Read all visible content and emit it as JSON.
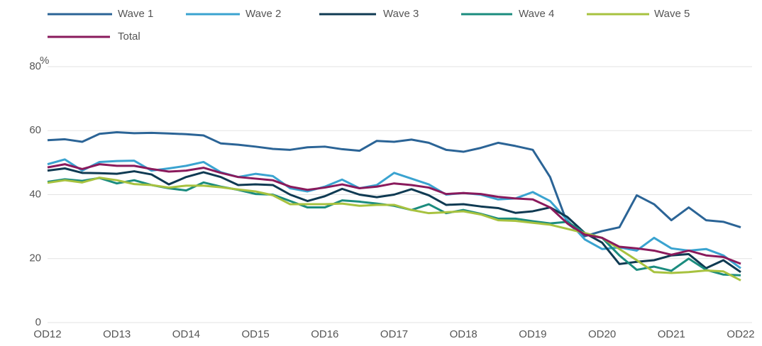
{
  "chart_data": {
    "type": "line",
    "y_label": "%",
    "categories": [
      "OD12",
      null,
      null,
      null,
      "OD13",
      null,
      null,
      null,
      "OD14",
      null,
      null,
      null,
      "OD15",
      null,
      null,
      null,
      "OD16",
      null,
      null,
      null,
      "OD17",
      null,
      null,
      null,
      "OD18",
      null,
      null,
      null,
      "OD19",
      null,
      null,
      null,
      "OD20",
      null,
      null,
      null,
      "OD21",
      null,
      null,
      null,
      "OD22"
    ],
    "series": [
      {
        "name": "Wave 1",
        "color": "#2b6496",
        "values": [
          57,
          57.3,
          56.5,
          59,
          59.5,
          59.2,
          59.3,
          59.1,
          58.9,
          58.5,
          56,
          55.6,
          55,
          54.3,
          54,
          54.8,
          55,
          54.2,
          53.7,
          56.8,
          56.5,
          57.2,
          56.2,
          54,
          53.4,
          54.6,
          56.2,
          55.2,
          54,
          45.5,
          31,
          27,
          28.6,
          29.8,
          39.8,
          37,
          32,
          36,
          32,
          31.5,
          29.8
        ]
      },
      {
        "name": "Wave 2",
        "color": "#3aa3d0",
        "values": [
          49.5,
          51,
          47.5,
          50.2,
          50.5,
          50.6,
          47.5,
          48.2,
          49,
          50.2,
          47,
          45.5,
          46.5,
          45.8,
          42,
          41,
          42.5,
          44.7,
          42,
          43,
          46.8,
          45,
          43.2,
          40,
          40.5,
          40,
          38.5,
          38.8,
          40.8,
          38,
          32,
          26,
          23,
          23.5,
          22.5,
          26.5,
          23.2,
          22.5,
          23,
          21,
          17
        ]
      },
      {
        "name": "Wave 3",
        "color": "#0f3a52",
        "values": [
          47.5,
          48.2,
          46.8,
          46.7,
          46.5,
          47.3,
          46.3,
          43.2,
          45.5,
          47,
          45.5,
          43,
          43.2,
          43,
          40,
          38,
          39.5,
          41.8,
          40,
          39.2,
          40,
          41.7,
          39.8,
          36.8,
          37,
          36.3,
          35.8,
          34.3,
          34.8,
          36,
          33,
          28,
          25,
          18.3,
          19,
          19.5,
          21,
          21.4,
          17,
          19.5,
          15.8
        ]
      },
      {
        "name": "Wave 4",
        "color": "#1b8c7e",
        "values": [
          44,
          44.8,
          44.3,
          45.2,
          43.5,
          44.5,
          43,
          42,
          41.3,
          43.8,
          42.5,
          41.5,
          40.2,
          40,
          38,
          36,
          36,
          38.2,
          37.8,
          37.2,
          36.5,
          35.2,
          37,
          34.2,
          35.2,
          34,
          32.5,
          32.5,
          31.7,
          31,
          31.5,
          28,
          26.5,
          21,
          16.5,
          17.5,
          16.2,
          20,
          16.5,
          15,
          14.8
        ]
      },
      {
        "name": "Wave 5",
        "color": "#a7c23f",
        "values": [
          43.7,
          44.5,
          43.8,
          45.3,
          44.5,
          43.3,
          43,
          42.2,
          42.8,
          42.8,
          42.3,
          41.6,
          41,
          39.8,
          37,
          37,
          37,
          37.2,
          36.5,
          36.8,
          36.8,
          35.2,
          34.2,
          34.5,
          34.8,
          33.8,
          32,
          31.8,
          31.2,
          30.6,
          29.3,
          28,
          26.5,
          23,
          19.5,
          15.8,
          15.5,
          15.8,
          16.3,
          16,
          13.2
        ]
      },
      {
        "name": "Total",
        "color": "#8a1a5c",
        "values": [
          48.5,
          49.5,
          48,
          49.5,
          49,
          49,
          48,
          47.2,
          47.5,
          48.4,
          46.8,
          45.5,
          45,
          44.5,
          42.5,
          41.5,
          42.2,
          43.2,
          42,
          42.5,
          43.5,
          43,
          42.2,
          40.2,
          40.5,
          40.2,
          39.3,
          38.8,
          38.5,
          36,
          31,
          27.5,
          26.5,
          23.7,
          23.2,
          22.5,
          21.2,
          22.5,
          21,
          20.5,
          18.4
        ]
      }
    ],
    "ylim": [
      0,
      80
    ],
    "yticks": [
      0,
      20,
      40,
      60,
      80
    ],
    "grid": true
  }
}
